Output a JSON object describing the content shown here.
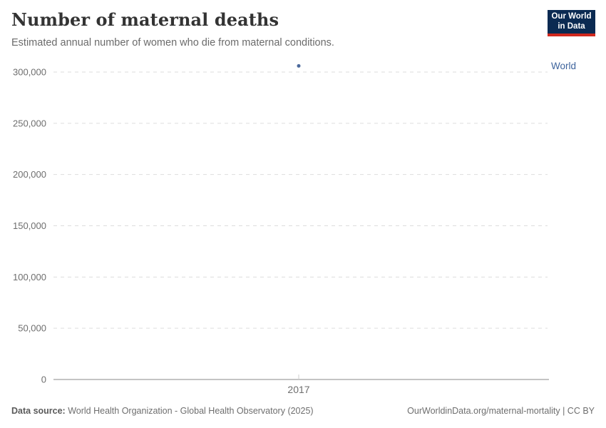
{
  "header": {
    "title": "Number of maternal deaths",
    "subtitle": "Estimated annual number of women who die from maternal conditions.",
    "logo": {
      "line1": "Our World",
      "line2": "in Data"
    }
  },
  "chart_data": {
    "type": "scatter",
    "title": "Number of maternal deaths",
    "subtitle": "Estimated annual number of women who die from maternal conditions.",
    "x": [
      2017
    ],
    "xticks": [
      2017
    ],
    "series": [
      {
        "name": "World",
        "values": [
          306000
        ],
        "color": "#4C6A9C"
      }
    ],
    "ylim": [
      0,
      300000
    ],
    "yticks": [
      0,
      50000,
      100000,
      150000,
      200000,
      250000,
      300000
    ],
    "xlabel": "",
    "ylabel": "",
    "grid": "horizontal-dashed",
    "legend_position": "right-of-plot"
  },
  "footer": {
    "source_label": "Data source:",
    "source_text": " World Health Organization - Global Health Observatory (2025)",
    "right_text": "OurWorldinData.org/maternal-mortality | CC BY"
  },
  "colors": {
    "point_blue": "#4C6A9C",
    "entity_label_blue": "#3d639c",
    "logo_navy": "#0b2a52",
    "logo_red": "#d0281e",
    "gridline": "#dddddd",
    "axis_line": "#a0a0a0",
    "tick_text": "#6e6e6e"
  }
}
